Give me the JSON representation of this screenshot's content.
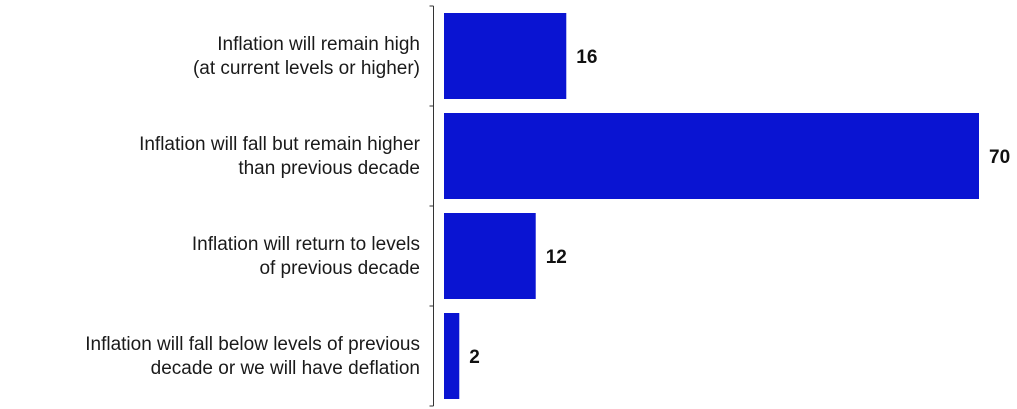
{
  "chart_data": {
    "type": "bar",
    "orientation": "horizontal",
    "categories": [
      [
        "Inflation will remain high",
        "(at current levels or higher)"
      ],
      [
        "Inflation will fall but remain higher",
        "than previous decade"
      ],
      [
        "Inflation will return to levels",
        "of previous decade"
      ],
      [
        "Inflation will fall below levels of previous",
        "decade or we will have deflation"
      ]
    ],
    "values": [
      16,
      70,
      12,
      2
    ],
    "data_labels": [
      "16",
      "70",
      "12",
      "2"
    ],
    "title": "",
    "xlabel": "",
    "ylabel": "",
    "xlim": [
      0,
      70
    ],
    "grid": false,
    "legend": "none",
    "bar_color": "#0a14d2"
  }
}
